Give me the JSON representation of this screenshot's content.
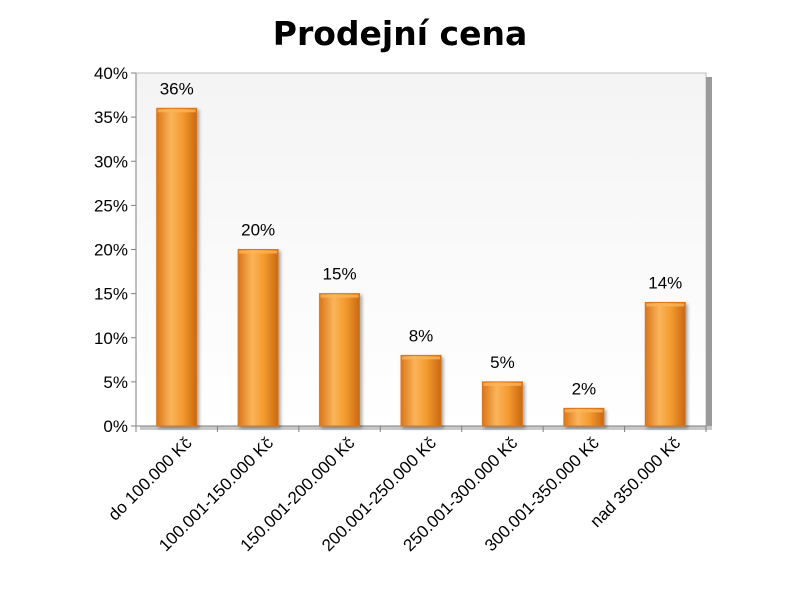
{
  "chart_data": {
    "type": "bar",
    "title": "Prodejní cena",
    "categories": [
      "do 100.000 Kč",
      "100.001-150.000 Kč",
      "150.001-200.000 Kč",
      "200.001-250.000 Kč",
      "250.001-300.000 Kč",
      "300.001-350.000 Kč",
      "nad 350.000 Kč"
    ],
    "values": [
      36,
      20,
      15,
      8,
      5,
      2,
      14
    ],
    "data_labels": [
      "36%",
      "20%",
      "15%",
      "8%",
      "5%",
      "2%",
      "14%"
    ],
    "ylim": [
      0,
      40
    ],
    "y_ticks": [
      0,
      5,
      10,
      15,
      20,
      25,
      30,
      35,
      40
    ],
    "y_tick_labels": [
      "0%",
      "5%",
      "10%",
      "15%",
      "20%",
      "25%",
      "30%",
      "35%",
      "40%"
    ],
    "grid": false,
    "legend": "none",
    "colors": {
      "bar": "#F39A2E",
      "bar_dark": "#D9761A",
      "bar_light": "#FBB45A",
      "plot_border": "#BFBFBF"
    }
  }
}
